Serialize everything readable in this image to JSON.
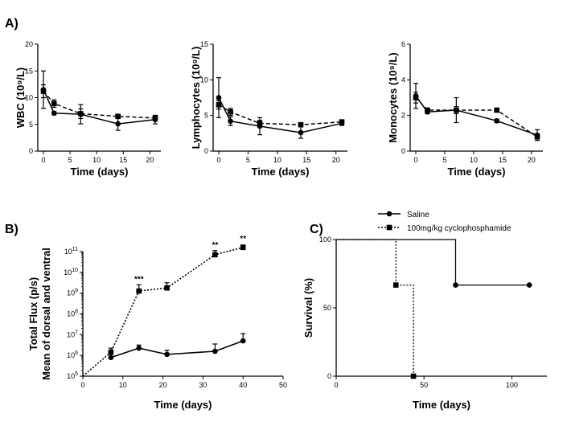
{
  "panels": {
    "A": "A)",
    "B": "B)",
    "C": "C)"
  },
  "chart_data": [
    {
      "id": "wbc",
      "type": "line",
      "xlabel": "Time (days)",
      "ylabel": "WBC (10⁹/L)",
      "xlim": [
        0,
        21
      ],
      "ylim": [
        0,
        20
      ],
      "xticks": [
        0,
        5,
        10,
        15,
        20
      ],
      "yticks": [
        0,
        5,
        10,
        15,
        20
      ],
      "series": [
        {
          "style": "solid",
          "marker": "circle",
          "x": [
            0,
            2,
            7,
            14,
            21
          ],
          "y": [
            11.5,
            7.1,
            6.9,
            5.1,
            5.9
          ],
          "err": [
            3.5,
            0.3,
            1.8,
            1.2,
            0.8
          ]
        },
        {
          "style": "dashed",
          "marker": "square",
          "x": [
            0,
            2,
            7,
            14,
            21
          ],
          "y": [
            11.2,
            8.9,
            7.0,
            6.5,
            6.2
          ],
          "err": [
            1.2,
            0.7,
            0.9,
            0.4,
            0.3
          ]
        }
      ]
    },
    {
      "id": "lymphocytes",
      "type": "line",
      "xlabel": "Time (days)",
      "ylabel": "Lymphocytes (10⁹/L)",
      "xlim": [
        0,
        21
      ],
      "ylim": [
        0,
        15
      ],
      "xticks": [
        0,
        5,
        10,
        15,
        20
      ],
      "yticks": [
        0,
        5,
        10,
        15
      ],
      "series": [
        {
          "style": "solid",
          "marker": "circle",
          "x": [
            0,
            2,
            7,
            14,
            21
          ],
          "y": [
            7.5,
            4.2,
            3.5,
            2.6,
            3.9
          ],
          "err": [
            2.8,
            0.6,
            1.2,
            0.8,
            0.3
          ]
        },
        {
          "style": "dashed",
          "marker": "square",
          "x": [
            0,
            2,
            7,
            14,
            21
          ],
          "y": [
            6.5,
            5.5,
            3.9,
            3.7,
            4.1
          ],
          "err": [
            0.6,
            0.5,
            0.4,
            0.2,
            0.2
          ]
        }
      ]
    },
    {
      "id": "monocytes",
      "type": "line",
      "xlabel": "Time (days)",
      "ylabel": "Monocytes (10⁹/L)",
      "xlim": [
        0,
        21
      ],
      "ylim": [
        0,
        6
      ],
      "xticks": [
        0,
        5,
        10,
        15,
        20
      ],
      "yticks": [
        0,
        2,
        4,
        6
      ],
      "series": [
        {
          "style": "solid",
          "marker": "circle",
          "x": [
            0,
            2,
            7,
            14,
            21
          ],
          "y": [
            3.1,
            2.2,
            2.3,
            1.7,
            0.9
          ],
          "err": [
            0.7,
            0.1,
            0.7,
            0.1,
            0.3
          ]
        },
        {
          "style": "dashed",
          "marker": "square",
          "x": [
            0,
            2,
            7,
            14,
            21
          ],
          "y": [
            3.0,
            2.3,
            2.3,
            2.3,
            0.8
          ],
          "err": [
            0.3,
            0.1,
            0.2,
            0.1,
            0.1
          ]
        }
      ]
    },
    {
      "id": "flux",
      "type": "line",
      "xlabel": "Time (days)",
      "ylabel_line1": "Total Flux (p/s)",
      "ylabel_line2": "Mean of dorsal and ventral",
      "yscale": "log",
      "xlim": [
        0,
        50
      ],
      "ylim_exp": [
        5,
        11
      ],
      "xticks": [
        0,
        10,
        20,
        30,
        40,
        50
      ],
      "yticks_exp": [
        5,
        6,
        7,
        8,
        9,
        10,
        11
      ],
      "tick_base": "10",
      "series": [
        {
          "style": "solid",
          "marker": "circle",
          "x": [
            7,
            14,
            21,
            33,
            40
          ],
          "y_exp": [
            5.9,
            6.35,
            6.05,
            6.2,
            6.7
          ],
          "err_exp": [
            0.2,
            0.15,
            0.2,
            0.35,
            0.35
          ]
        },
        {
          "style": "dotted",
          "marker": "square",
          "x": [
            0,
            7,
            14,
            21,
            33,
            40
          ],
          "y_exp": [
            5.0,
            6.15,
            9.1,
            9.25,
            10.85,
            11.2
          ],
          "err_exp": [
            0,
            0.2,
            0.3,
            0.25,
            0.2,
            0.12
          ]
        }
      ],
      "annotations": [
        {
          "text": "***",
          "x": 14,
          "y_exp": 9.55
        },
        {
          "text": "**",
          "x": 33,
          "y_exp": 11.2
        },
        {
          "text": "**",
          "x": 40,
          "y_exp": 11.5
        }
      ]
    },
    {
      "id": "survival",
      "type": "line",
      "xlabel": "Time (days)",
      "ylabel": "Survival (%)",
      "xlim": [
        0,
        120
      ],
      "ylim": [
        0,
        100
      ],
      "xticks": [
        0,
        50,
        100
      ],
      "yticks": [
        0,
        50,
        100
      ],
      "legend_position": "top",
      "series": [
        {
          "name": "Saline",
          "style": "solid",
          "marker": "circle",
          "step_x": [
            0,
            68,
            110
          ],
          "step_y": [
            100,
            66.7,
            66.7
          ],
          "marker_x": [
            68,
            110
          ],
          "marker_y": [
            66.7,
            66.7
          ]
        },
        {
          "name": "100mg/kg cyclophosphamide",
          "style": "dotted",
          "marker": "square",
          "step_x": [
            0,
            34,
            44
          ],
          "step_y": [
            100,
            66.7,
            0
          ],
          "marker_x": [
            34,
            44
          ],
          "marker_y": [
            66.7,
            0
          ]
        }
      ]
    }
  ]
}
